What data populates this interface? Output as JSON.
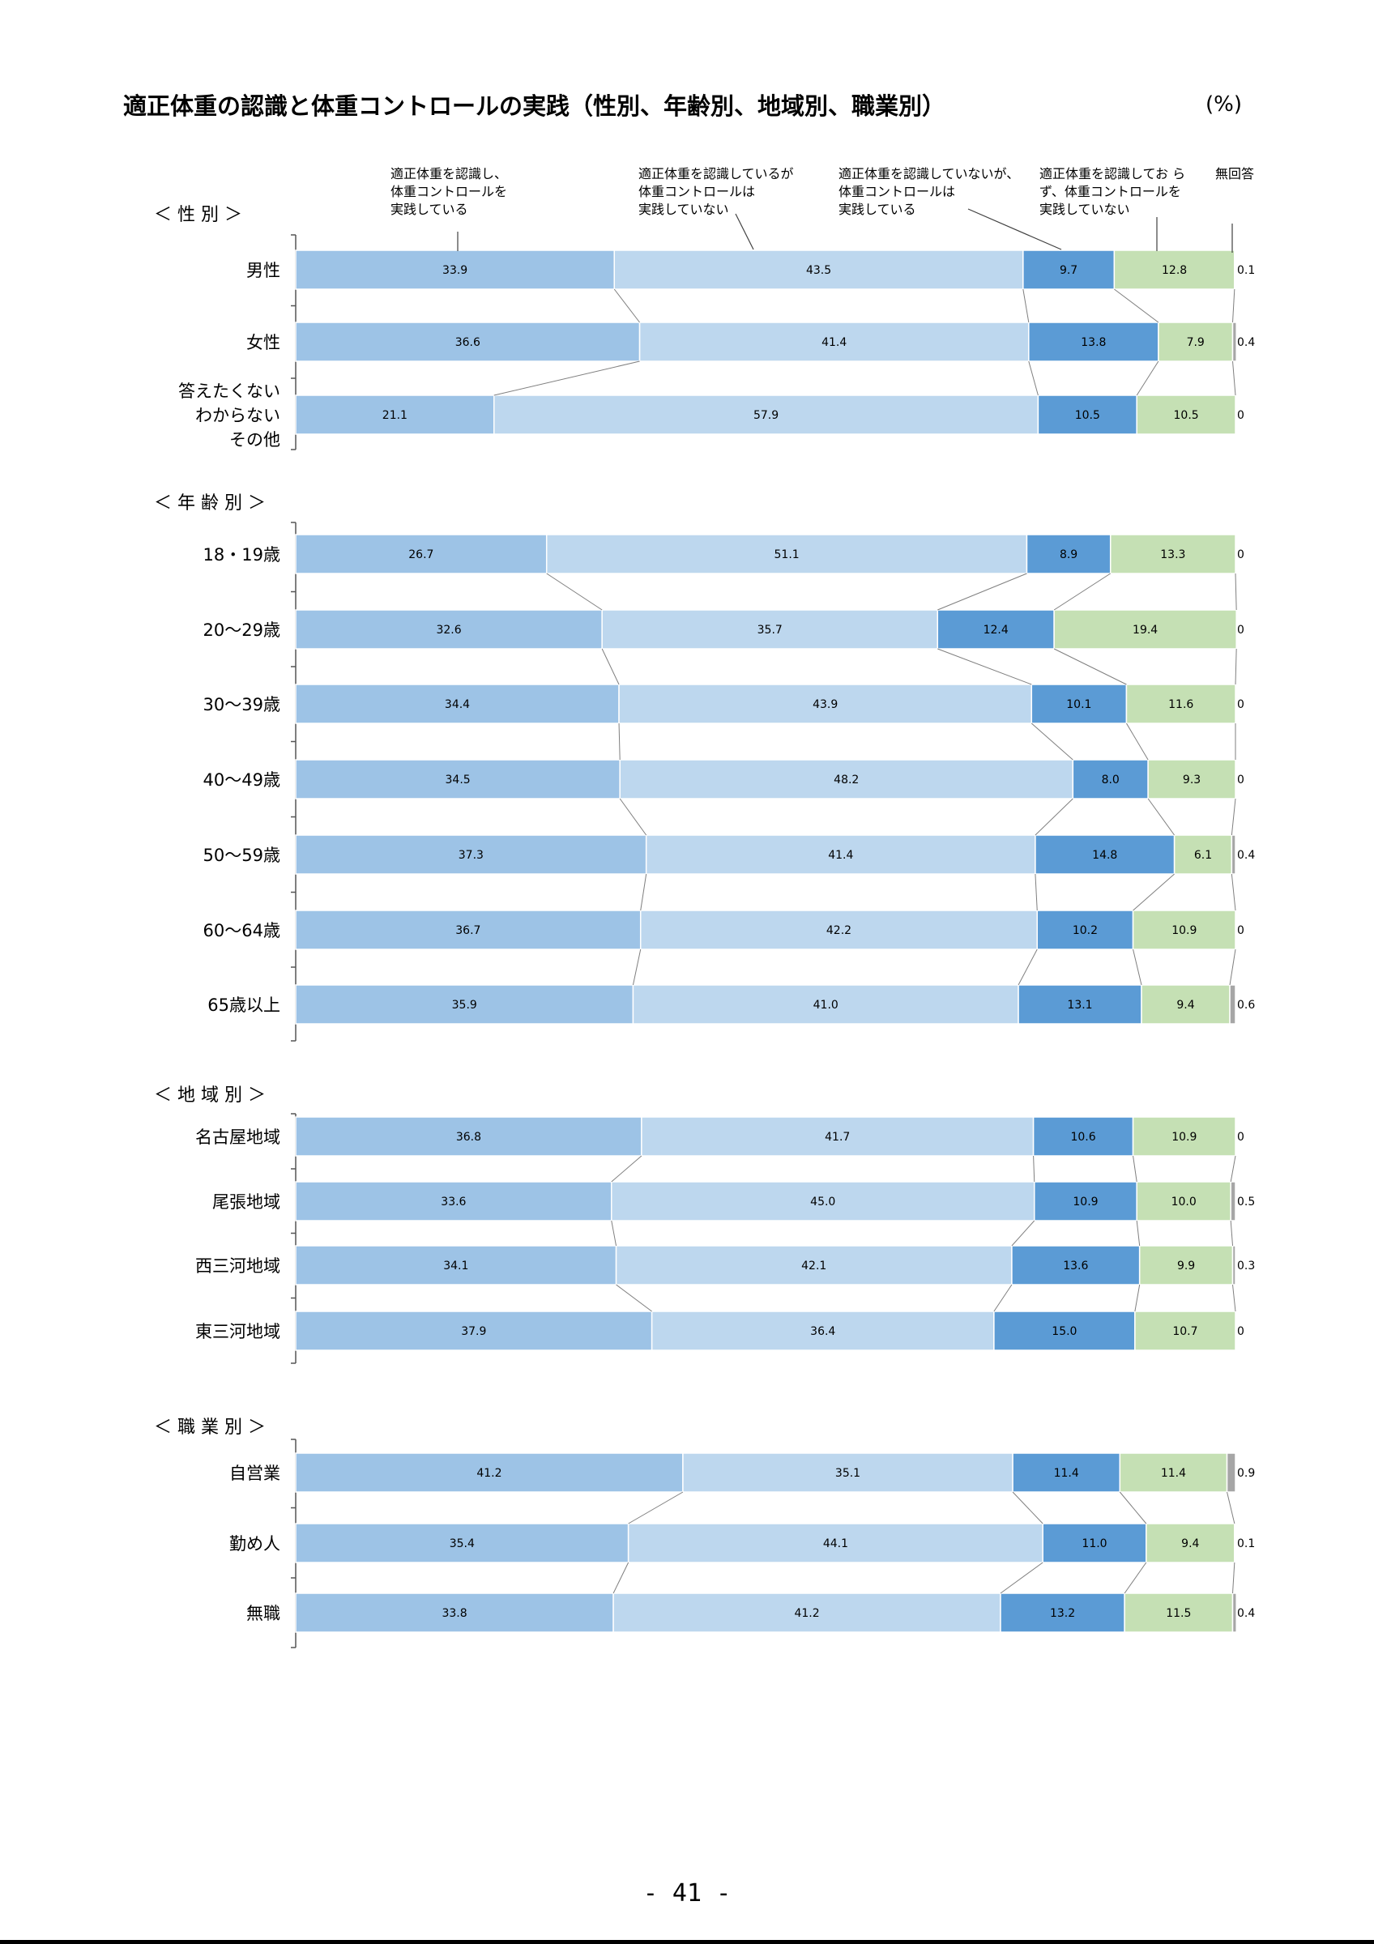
{
  "title": "適正体重の認識と体重コントロールの実践（性別、年齢別、地域別、職業別）",
  "unit": "(%)",
  "page_number": "- 41 -",
  "colors": [
    "#9dc3e6",
    "#bdd7ee",
    "#5b9bd5",
    "#c5e0b4",
    "#a6a6a6"
  ],
  "chart_data": {
    "type": "bar",
    "stacked": "100%",
    "orientation": "horizontal",
    "series": [
      {
        "name": "適正体重を認識し、体重コントロールを実践している"
      },
      {
        "name": "適正体重を認識しているが体重コントロールは実践していない"
      },
      {
        "name": "適正体重を認識していないが、体重コントロールは実践している"
      },
      {
        "name": "適正体重を認識しておらず、体重コントロールを実践していない"
      },
      {
        "name": "無回答"
      }
    ],
    "groups": [
      {
        "label": "＜ 性 別 ＞",
        "rows": [
          {
            "label": [
              "男性"
            ],
            "values": [
              33.9,
              43.5,
              9.7,
              12.8,
              0.1
            ],
            "value_labels": [
              "33.9",
              "43.5",
              "9.7",
              "12.8",
              "0.1"
            ]
          },
          {
            "label": [
              "女性"
            ],
            "values": [
              36.6,
              41.4,
              13.8,
              7.9,
              0.4
            ],
            "value_labels": [
              "36.6",
              "41.4",
              "13.8",
              "7.9",
              "0.4"
            ]
          },
          {
            "label": [
              "答えたくない",
              "わからない",
              "その他"
            ],
            "values": [
              21.1,
              57.9,
              10.5,
              10.5,
              0
            ],
            "value_labels": [
              "21.1",
              "57.9",
              "10.5",
              "10.5",
              "0"
            ]
          }
        ]
      },
      {
        "label": "＜ 年 齢 別 ＞",
        "rows": [
          {
            "label": [
              "18・19歳"
            ],
            "values": [
              26.7,
              51.1,
              8.9,
              13.3,
              0
            ],
            "value_labels": [
              "26.7",
              "51.1",
              "8.9",
              "13.3",
              "0"
            ]
          },
          {
            "label": [
              "20～29歳"
            ],
            "values": [
              32.6,
              35.7,
              12.4,
              19.4,
              0
            ],
            "value_labels": [
              "32.6",
              "35.7",
              "12.4",
              "19.4",
              "0"
            ]
          },
          {
            "label": [
              "30～39歳"
            ],
            "values": [
              34.4,
              43.9,
              10.1,
              11.6,
              0
            ],
            "value_labels": [
              "34.4",
              "43.9",
              "10.1",
              "11.6",
              "0"
            ]
          },
          {
            "label": [
              "40～49歳"
            ],
            "values": [
              34.5,
              48.2,
              8.0,
              9.3,
              0
            ],
            "value_labels": [
              "34.5",
              "48.2",
              "8.0",
              "9.3",
              "0"
            ]
          },
          {
            "label": [
              "50～59歳"
            ],
            "values": [
              37.3,
              41.4,
              14.8,
              6.1,
              0.4
            ],
            "value_labels": [
              "37.3",
              "41.4",
              "14.8",
              "6.1",
              "0.4"
            ]
          },
          {
            "label": [
              "60～64歳"
            ],
            "values": [
              36.7,
              42.2,
              10.2,
              10.9,
              0
            ],
            "value_labels": [
              "36.7",
              "42.2",
              "10.2",
              "10.9",
              "0"
            ]
          },
          {
            "label": [
              "65歳以上"
            ],
            "values": [
              35.9,
              41.0,
              13.1,
              9.4,
              0.6
            ],
            "value_labels": [
              "35.9",
              "41.0",
              "13.1",
              "9.4",
              "0.6"
            ]
          }
        ]
      },
      {
        "label": "＜ 地 域 別 ＞",
        "rows": [
          {
            "label": [
              "名古屋地域"
            ],
            "values": [
              36.8,
              41.7,
              10.6,
              10.9,
              0
            ],
            "value_labels": [
              "36.8",
              "41.7",
              "10.6",
              "10.9",
              "0"
            ]
          },
          {
            "label": [
              "尾張地域"
            ],
            "values": [
              33.6,
              45.0,
              10.9,
              10.0,
              0.5
            ],
            "value_labels": [
              "33.6",
              "45.0",
              "10.9",
              "10.0",
              "0.5"
            ]
          },
          {
            "label": [
              "西三河地域"
            ],
            "values": [
              34.1,
              42.1,
              13.6,
              9.9,
              0.3
            ],
            "value_labels": [
              "34.1",
              "42.1",
              "13.6",
              "9.9",
              "0.3"
            ]
          },
          {
            "label": [
              "東三河地域"
            ],
            "values": [
              37.9,
              36.4,
              15.0,
              10.7,
              0
            ],
            "value_labels": [
              "37.9",
              "36.4",
              "15.0",
              "10.7",
              "0"
            ]
          }
        ]
      },
      {
        "label": "＜ 職 業 別 ＞",
        "rows": [
          {
            "label": [
              "自営業"
            ],
            "values": [
              41.2,
              35.1,
              11.4,
              11.4,
              0.9
            ],
            "value_labels": [
              "41.2",
              "35.1",
              "11.4",
              "11.4",
              "0.9"
            ]
          },
          {
            "label": [
              "勤め人"
            ],
            "values": [
              35.4,
              44.1,
              11.0,
              9.4,
              0.1
            ],
            "value_labels": [
              "35.4",
              "44.1",
              "11.0",
              "9.4",
              "0.1"
            ]
          },
          {
            "label": [
              "無職"
            ],
            "values": [
              33.8,
              41.2,
              13.2,
              11.5,
              0.4
            ],
            "value_labels": [
              "33.8",
              "41.2",
              "13.2",
              "11.5",
              "0.4"
            ]
          }
        ]
      }
    ],
    "legend": [
      {
        "lines": [
          "適正体重を認識し、",
          "体重コントロールを",
          "実践している"
        ]
      },
      {
        "lines": [
          "適正体重を認識しているが",
          "体重コントロールは",
          "実践していない"
        ]
      },
      {
        "lines": [
          "適正体重を認識していないが、",
          "体重コントロールは",
          "実践している"
        ]
      },
      {
        "lines": [
          "適正体重を認識してお ら",
          "ず、体重コントロールを",
          "実践していない"
        ]
      },
      {
        "lines": [
          "無回答"
        ]
      }
    ]
  }
}
